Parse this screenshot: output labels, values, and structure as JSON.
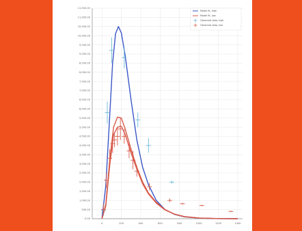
{
  "chart_data": {
    "type": "line",
    "title": "",
    "xlabel": "",
    "ylabel": "",
    "xlim": [
      -100,
      1450
    ],
    "ylim": [
      0,
      11500
    ],
    "x_ticks": [
      "0",
      "200",
      "400",
      "600",
      "800",
      "1000",
      "1200",
      "1400"
    ],
    "y_ticks": [
      "0.00",
      "500.00",
      "1,000.00",
      "1,500.00",
      "2,000.00",
      "2,500.00",
      "3,000.00",
      "3,500.00",
      "4,000.00",
      "4,500.00",
      "5,000.00",
      "5,500.00",
      "6,000.00",
      "6,500.00",
      "7,000.00",
      "7,500.00",
      "8,000.00",
      "8,500.00",
      "9,000.00",
      "9,500.00",
      "10,000.00",
      "10,500.00",
      "11,000.00",
      "11,500.00"
    ],
    "grid": true,
    "legend": {
      "position": "top-right",
      "entries": [
        {
          "label": "Model fit, high",
          "color": "#3a56c8",
          "style": "line"
        },
        {
          "label": "Model fit, low",
          "color": "#d85a4a",
          "style": "line"
        },
        {
          "label": "Observed data, high",
          "color": "#6cb8d8",
          "style": "marker"
        },
        {
          "label": "Observed data, low",
          "color": "#d85a4a",
          "style": "marker"
        }
      ]
    },
    "series": [
      {
        "kind": "line",
        "color": "#3a56c8",
        "x": [
          0,
          40,
          80,
          110,
          140,
          170,
          200,
          240,
          300,
          360,
          420,
          480,
          560,
          650,
          750,
          850,
          1000,
          1200,
          1400
        ],
        "y": [
          0,
          1800,
          5600,
          8500,
          10100,
          10500,
          10150,
          8900,
          6500,
          4300,
          2800,
          1850,
          1000,
          500,
          230,
          100,
          30,
          5,
          0
        ]
      },
      {
        "kind": "line",
        "color": "#d85a4a",
        "x": [
          0,
          40,
          80,
          120,
          160,
          200,
          240,
          300,
          360,
          420,
          480,
          560,
          650,
          750,
          850,
          1000,
          1200,
          1400
        ],
        "y": [
          0,
          800,
          3200,
          5000,
          5550,
          5500,
          4900,
          3800,
          2800,
          2000,
          1400,
          900,
          500,
          250,
          120,
          40,
          8,
          0
        ]
      },
      {
        "kind": "line",
        "color": "#d85a4a",
        "x": [
          0,
          40,
          80,
          120,
          160,
          200,
          240,
          300,
          360,
          420,
          480,
          560,
          650,
          750,
          850,
          1000,
          1200,
          1400
        ],
        "y": [
          0,
          700,
          2900,
          4600,
          5000,
          5050,
          4600,
          3600,
          2700,
          1900,
          1350,
          850,
          480,
          240,
          110,
          35,
          6,
          0
        ]
      },
      {
        "kind": "points",
        "color": "#6cb8d8",
        "points": [
          {
            "x": 15,
            "y": 450,
            "e": 300
          },
          {
            "x": 55,
            "y": 5800,
            "e": 600
          },
          {
            "x": 100,
            "y": 9200,
            "e": 700
          },
          {
            "x": 230,
            "y": 8800,
            "e": 600
          },
          {
            "x": 370,
            "y": 5400,
            "e": 400
          },
          {
            "x": 480,
            "y": 4000,
            "e": 400
          },
          {
            "x": 720,
            "y": 2000,
            "e": 80
          }
        ]
      },
      {
        "kind": "points",
        "color": "#d85a4a",
        "points": [
          {
            "x": 15,
            "y": 500,
            "e": 300
          },
          {
            "x": 45,
            "y": 2100,
            "e": 400
          },
          {
            "x": 80,
            "y": 3300,
            "e": 500
          },
          {
            "x": 110,
            "y": 4100,
            "e": 500
          },
          {
            "x": 130,
            "y": 4300,
            "e": 400
          },
          {
            "x": 160,
            "y": 4500,
            "e": 500
          },
          {
            "x": 190,
            "y": 4900,
            "e": 600
          },
          {
            "x": 230,
            "y": 4500,
            "e": 400
          },
          {
            "x": 280,
            "y": 3700,
            "e": 400
          },
          {
            "x": 320,
            "y": 3200,
            "e": 500
          },
          {
            "x": 360,
            "y": 2600,
            "e": 300
          },
          {
            "x": 490,
            "y": 1750,
            "e": 200
          },
          {
            "x": 700,
            "y": 1000,
            "e": 100
          },
          {
            "x": 830,
            "y": 820,
            "e": 50
          },
          {
            "x": 1030,
            "y": 720,
            "e": 40
          },
          {
            "x": 1330,
            "y": 400,
            "e": 40
          }
        ]
      }
    ]
  }
}
